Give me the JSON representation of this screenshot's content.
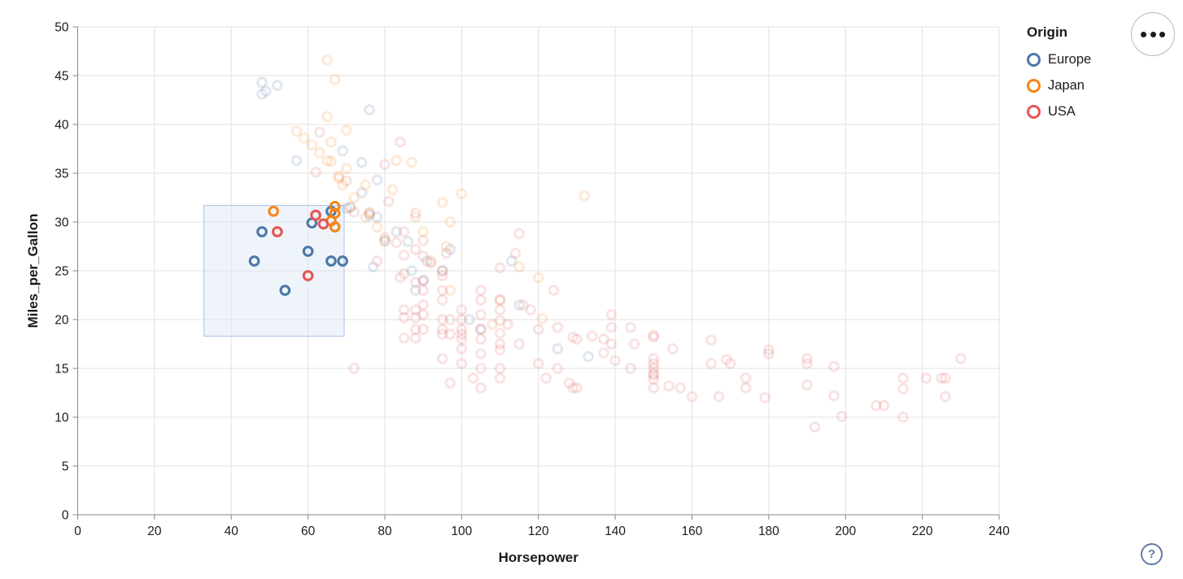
{
  "icons": {
    "menu_button": "more-options-ellipsis",
    "help_button": "question-mark"
  },
  "chart_data": {
    "type": "scatter",
    "title": "",
    "xlabel": "Horsepower",
    "ylabel": "Miles_per_Gallon",
    "xlim": [
      0,
      240
    ],
    "ylim": [
      0,
      50
    ],
    "xticks": [
      0,
      20,
      40,
      60,
      80,
      100,
      120,
      140,
      160,
      180,
      200,
      220,
      240
    ],
    "yticks": [
      0,
      5,
      10,
      15,
      20,
      25,
      30,
      35,
      40,
      45,
      50
    ],
    "grid": true,
    "mark": "hollow-circle",
    "unselected_opacity": 0.17,
    "brush": {
      "x_range": [
        32.9,
        69.4
      ],
      "y_range": [
        18.3,
        31.7
      ],
      "fill": "#dce6f5",
      "fill_opacity": 0.45,
      "stroke": "#b7c9ea"
    },
    "legend": {
      "title": "Origin",
      "position": "top-right",
      "entries": [
        {
          "label": "Europe",
          "color": "#4c78a8"
        },
        {
          "label": "Japan",
          "color": "#f58518"
        },
        {
          "label": "USA",
          "color": "#e45756"
        }
      ]
    },
    "series": [
      {
        "name": "Europe",
        "color": "#4c78a8",
        "selected": [
          [
            46,
            26
          ],
          [
            48,
            29
          ],
          [
            54,
            23
          ],
          [
            60,
            27
          ],
          [
            61,
            29.9
          ],
          [
            66,
            31.1
          ],
          [
            66,
            26
          ],
          [
            69,
            26
          ]
        ],
        "unselected": [
          [
            48,
            44.3
          ],
          [
            52,
            44.0
          ],
          [
            49,
            43.4
          ],
          [
            48,
            43.1
          ],
          [
            76,
            41.5
          ],
          [
            69,
            37.3
          ],
          [
            57,
            36.3
          ],
          [
            74,
            36.1
          ],
          [
            78,
            34.3
          ],
          [
            74,
            33
          ],
          [
            71,
            31.5
          ],
          [
            70,
            31.4
          ],
          [
            76,
            30.7
          ],
          [
            78,
            30.5
          ],
          [
            83,
            29
          ],
          [
            80,
            28.1
          ],
          [
            86,
            28
          ],
          [
            97,
            27.2
          ],
          [
            91,
            26
          ],
          [
            113,
            26
          ],
          [
            77,
            25.4
          ],
          [
            95,
            25
          ],
          [
            87,
            25
          ],
          [
            90,
            24
          ],
          [
            88,
            23
          ],
          [
            115,
            21.5
          ],
          [
            102,
            20
          ],
          [
            105,
            19
          ],
          [
            125,
            17
          ],
          [
            133,
            16.2
          ]
        ]
      },
      {
        "name": "Japan",
        "color": "#f58518",
        "selected": [
          [
            51,
            31.1
          ],
          [
            66,
            30.1
          ],
          [
            67,
            31.6
          ],
          [
            67,
            30.9
          ],
          [
            67,
            29.5
          ]
        ],
        "unselected": [
          [
            65,
            46.6
          ],
          [
            67,
            44.6
          ],
          [
            65,
            40.8
          ],
          [
            70,
            39.4
          ],
          [
            57,
            39.3
          ],
          [
            59,
            38.6
          ],
          [
            66,
            38.2
          ],
          [
            61,
            37.9
          ],
          [
            63,
            37.1
          ],
          [
            65,
            36.3
          ],
          [
            66,
            36.2
          ],
          [
            87,
            36.1
          ],
          [
            83,
            36.3
          ],
          [
            70,
            35.5
          ],
          [
            68,
            34.7
          ],
          [
            68,
            34.5
          ],
          [
            69,
            33.8
          ],
          [
            75,
            33.8
          ],
          [
            82,
            33.3
          ],
          [
            100,
            32.9
          ],
          [
            132,
            32.7
          ],
          [
            72,
            32.5
          ],
          [
            95,
            32
          ],
          [
            71,
            31.5
          ],
          [
            76,
            31
          ],
          [
            75,
            30.5
          ],
          [
            88,
            30.5
          ],
          [
            97,
            30
          ],
          [
            78,
            29.5
          ],
          [
            90,
            29
          ],
          [
            92,
            26
          ],
          [
            80,
            28
          ],
          [
            96,
            27.5
          ],
          [
            115,
            25.4
          ],
          [
            120,
            24.3
          ],
          [
            97,
            23
          ],
          [
            110,
            22
          ],
          [
            121,
            20.1
          ],
          [
            108,
            19.5
          ]
        ]
      },
      {
        "name": "USA",
        "color": "#e45756",
        "selected": [
          [
            52,
            29
          ],
          [
            60,
            24.5
          ],
          [
            62,
            30.7
          ],
          [
            64,
            29.8
          ]
        ],
        "unselected": [
          [
            63,
            39.2
          ],
          [
            84,
            38.2
          ],
          [
            80,
            35.9
          ],
          [
            62,
            35.1
          ],
          [
            70,
            34.2
          ],
          [
            81,
            32.1
          ],
          [
            72,
            31
          ],
          [
            76,
            30.9
          ],
          [
            88,
            30.9
          ],
          [
            85,
            29
          ],
          [
            115,
            28.8
          ],
          [
            80,
            28.4
          ],
          [
            90,
            28.1
          ],
          [
            83,
            27.9
          ],
          [
            88,
            27.2
          ],
          [
            96,
            26.8
          ],
          [
            114,
            26.8
          ],
          [
            85,
            26.6
          ],
          [
            90,
            26.5
          ],
          [
            78,
            26
          ],
          [
            92,
            25.8
          ],
          [
            110,
            25.3
          ],
          [
            95,
            25
          ],
          [
            85,
            24.7
          ],
          [
            90,
            24
          ],
          [
            95,
            24.5
          ],
          [
            84,
            24.3
          ],
          [
            88,
            23.8
          ],
          [
            95,
            23
          ],
          [
            105,
            23
          ],
          [
            124,
            23
          ],
          [
            90,
            23
          ],
          [
            116,
            21.5
          ],
          [
            85,
            21
          ],
          [
            88,
            21
          ],
          [
            100,
            21
          ],
          [
            110,
            21
          ],
          [
            118,
            21
          ],
          [
            85,
            20.2
          ],
          [
            88,
            20.2
          ],
          [
            90,
            20.5
          ],
          [
            95,
            20
          ],
          [
            97,
            20
          ],
          [
            100,
            20
          ],
          [
            105,
            20.5
          ],
          [
            110,
            19.9
          ],
          [
            88,
            19
          ],
          [
            90,
            19
          ],
          [
            95,
            19
          ],
          [
            100,
            19
          ],
          [
            105,
            19
          ],
          [
            112,
            19.5
          ],
          [
            120,
            19
          ],
          [
            125,
            19.2
          ],
          [
            85,
            18.1
          ],
          [
            88,
            18.1
          ],
          [
            95,
            18.5
          ],
          [
            97,
            18.5
          ],
          [
            100,
            18
          ],
          [
            100,
            18.5
          ],
          [
            105,
            18
          ],
          [
            110,
            18.6
          ],
          [
            90,
            21.5
          ],
          [
            95,
            22
          ],
          [
            105,
            22
          ],
          [
            110,
            22
          ],
          [
            110,
            17.5
          ],
          [
            115,
            17.5
          ],
          [
            100,
            17
          ],
          [
            105,
            16.5
          ],
          [
            110,
            16.9
          ],
          [
            95,
            16
          ],
          [
            100,
            15.5
          ],
          [
            105,
            15
          ],
          [
            110,
            15
          ],
          [
            97,
            13.5
          ],
          [
            103,
            14
          ],
          [
            105,
            13
          ],
          [
            110,
            14
          ],
          [
            120,
            15.5
          ],
          [
            122,
            14
          ],
          [
            125,
            15
          ],
          [
            128,
            13.5
          ],
          [
            129,
            13
          ],
          [
            130,
            13
          ],
          [
            130,
            18
          ],
          [
            72,
            15
          ],
          [
            129,
            18.2
          ],
          [
            134,
            18.3
          ],
          [
            137,
            18
          ],
          [
            139,
            20.5
          ],
          [
            139,
            19.2
          ],
          [
            139,
            17.5
          ],
          [
            137,
            16.6
          ],
          [
            140,
            15.8
          ],
          [
            144,
            19.2
          ],
          [
            145,
            17.5
          ],
          [
            144,
            15
          ],
          [
            150,
            18.4
          ],
          [
            150,
            18.2
          ],
          [
            150,
            16
          ],
          [
            150,
            15.5
          ],
          [
            150,
            15
          ],
          [
            150,
            14.5
          ],
          [
            150,
            14.3
          ],
          [
            150,
            13.9
          ],
          [
            150,
            13
          ],
          [
            155,
            17
          ],
          [
            154,
            13.2
          ],
          [
            157,
            13
          ],
          [
            160,
            12.1
          ],
          [
            165,
            17.9
          ],
          [
            165,
            15.5
          ],
          [
            167,
            12.1
          ],
          [
            170,
            15.5
          ],
          [
            169,
            15.9
          ],
          [
            174,
            14
          ],
          [
            174,
            13
          ],
          [
            180,
            16.5
          ],
          [
            180,
            16.9
          ],
          [
            179,
            12
          ],
          [
            190,
            16
          ],
          [
            190,
            15.5
          ],
          [
            190,
            13.3
          ],
          [
            197,
            15.2
          ],
          [
            197,
            12.2
          ],
          [
            199,
            10.1
          ],
          [
            192,
            9
          ],
          [
            208,
            11.2
          ],
          [
            210,
            11.2
          ],
          [
            215,
            14
          ],
          [
            215,
            12.9
          ],
          [
            215,
            10
          ],
          [
            221,
            14
          ],
          [
            225,
            14
          ],
          [
            226,
            14
          ],
          [
            226,
            12.1
          ],
          [
            230,
            16
          ]
        ]
      }
    ]
  }
}
